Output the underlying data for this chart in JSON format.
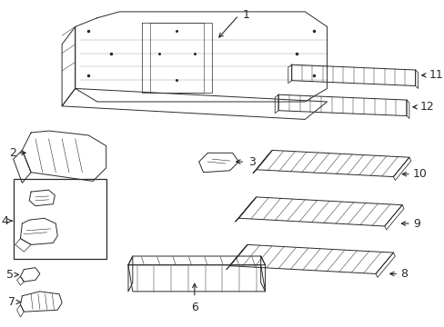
{
  "background_color": "#ffffff",
  "line_color": "#2a2a2a",
  "label_fontsize": 9,
  "fig_width": 4.89,
  "fig_height": 3.6,
  "dpi": 100
}
